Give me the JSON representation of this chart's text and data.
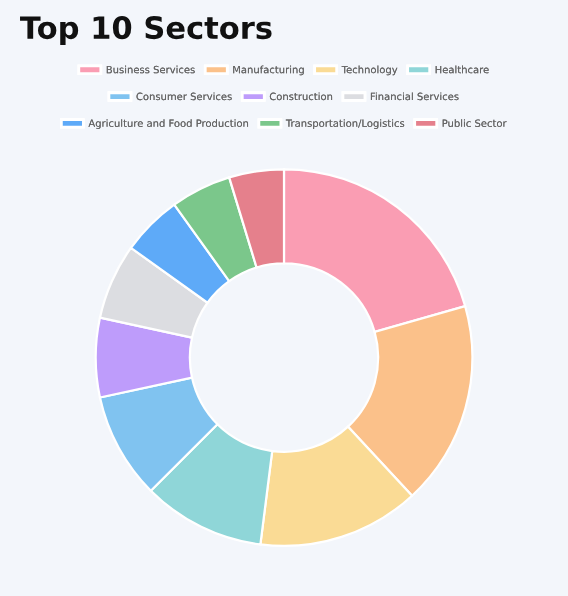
{
  "chart_data": {
    "type": "donut",
    "title": "Top 10 Sectors",
    "categories": [
      "Business Services",
      "Manufacturing",
      "Technology",
      "Healthcare",
      "Consumer Services",
      "Construction",
      "Financial Services",
      "Agriculture and Food Production",
      "Transportation/Logistics",
      "Public Sector"
    ],
    "values": [
      20.6,
      17.5,
      13.9,
      10.5,
      9.1,
      6.8,
      6.5,
      5.2,
      5.2,
      4.7
    ],
    "colors": [
      "#fa9db3",
      "#fbc18a",
      "#fadb95",
      "#8fd6d8",
      "#80c3f0",
      "#be9cfb",
      "#dcdde1",
      "#5eaaf8",
      "#7bc78b",
      "#e5808c"
    ],
    "legend": "top"
  }
}
